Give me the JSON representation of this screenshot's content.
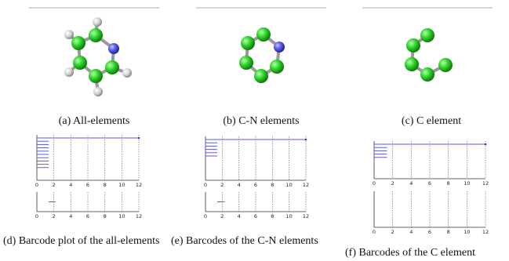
{
  "panels": [
    {
      "caption": "(a) All-elements"
    },
    {
      "caption": "(b) C-N elements"
    },
    {
      "caption": "(c) C element"
    }
  ],
  "barcodes": [
    {
      "caption": "(d) Barcode plot of the all-elements",
      "xlim": [
        0,
        12
      ],
      "xticks": [
        0,
        2,
        4,
        6,
        8,
        10,
        12
      ],
      "betti0": [
        [
          0,
          12
        ],
        [
          0,
          1.4
        ],
        [
          0,
          1.4
        ],
        [
          0,
          1.4
        ],
        [
          0,
          1.4
        ],
        [
          0,
          1.4
        ],
        [
          0,
          1.4
        ],
        [
          0,
          1.4
        ],
        [
          0,
          1.4
        ],
        [
          0,
          1.4
        ]
      ],
      "betti1": [
        [
          1.4,
          2.2
        ]
      ]
    },
    {
      "caption": "(e) Barcodes of the C-N elements",
      "xlim": [
        0,
        12
      ],
      "xticks": [
        0,
        2,
        4,
        6,
        8,
        10,
        12
      ],
      "betti0": [
        [
          0,
          12
        ],
        [
          0,
          1.4
        ],
        [
          0,
          1.4
        ],
        [
          0,
          1.4
        ],
        [
          0,
          1.4
        ],
        [
          0,
          1.4
        ]
      ],
      "betti1": [
        [
          1.4,
          2.3
        ]
      ]
    },
    {
      "caption": "(f) Barcodes of the C element",
      "xlim": [
        0,
        12
      ],
      "xticks": [
        0,
        2,
        4,
        6,
        8,
        10,
        12
      ],
      "betti0": [
        [
          0,
          12
        ],
        [
          0,
          1.4
        ],
        [
          0,
          1.4
        ],
        [
          0,
          1.4
        ],
        [
          0,
          1.4
        ]
      ],
      "betti1": []
    }
  ]
}
